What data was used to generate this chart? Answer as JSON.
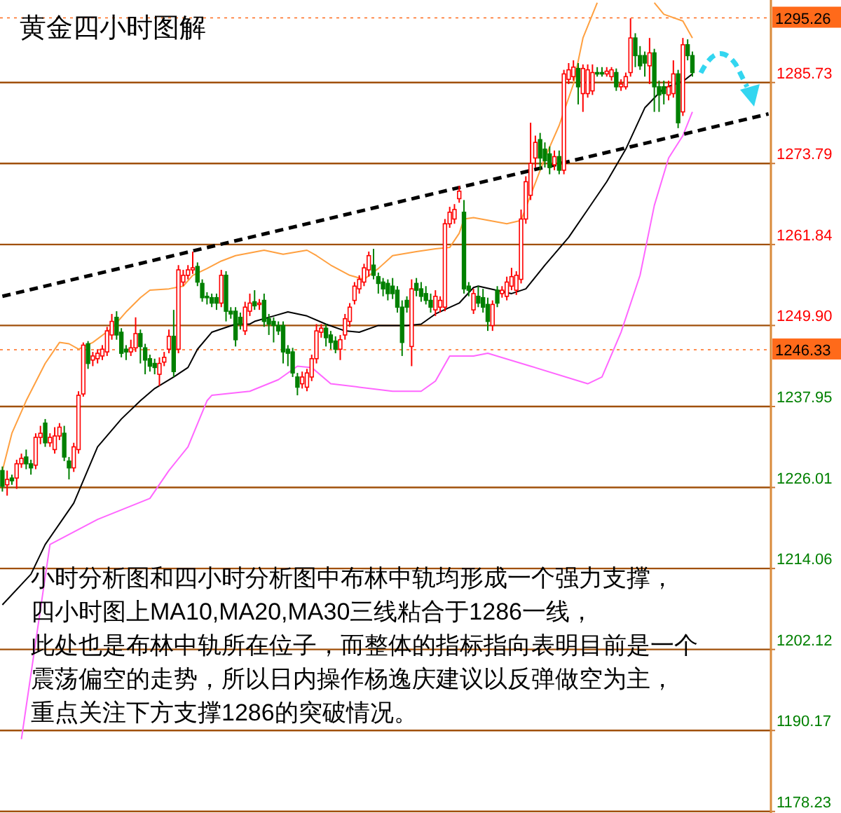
{
  "chart_data": {
    "type": "candlestick",
    "title": "黄金四小时图解",
    "annotations": [
      "小时分析图和四小时分析图中布林中轨均形成一个强力支撑，",
      "四小时图上MA10,MA20,MA30三线粘合于1286一线，",
      "此处也是布林中轨所在位子，而整体的指标指向表明目前是一个",
      "震荡偏空的走势，所以日内操作杨逸庆建议以反弹做空为主，",
      "重点关注下方支撑1286的突破情况。"
    ],
    "categories": [
      null,
      null,
      null,
      null,
      null,
      null,
      null,
      null,
      null,
      null,
      null,
      null,
      null,
      null,
      null,
      null,
      null,
      null,
      null,
      null,
      null,
      null,
      null,
      null,
      null,
      null,
      null,
      null,
      null,
      null,
      null,
      null,
      null,
      null,
      null,
      null,
      null,
      null,
      null,
      null,
      null,
      null,
      null,
      null,
      null,
      null,
      null,
      null,
      null,
      null,
      null,
      null,
      null,
      null,
      null,
      null,
      null,
      null,
      null,
      null,
      null,
      null,
      null,
      null,
      null,
      null,
      null,
      null,
      null,
      null,
      null,
      null,
      null,
      null,
      null,
      null,
      null,
      null,
      null,
      null,
      null,
      null,
      null,
      null,
      null,
      null,
      null,
      null,
      null,
      null,
      null,
      null,
      null,
      null,
      null,
      null,
      null,
      null,
      null,
      null,
      null,
      null,
      null,
      null,
      null,
      null,
      null,
      null,
      null,
      null,
      null,
      null,
      null,
      null,
      null,
      null,
      null,
      null,
      null,
      null,
      null,
      null,
      null,
      null,
      null,
      null,
      null,
      null,
      null,
      null,
      null,
      null,
      null,
      null,
      null,
      null,
      null,
      null,
      null,
      null,
      null,
      null,
      null,
      null,
      null,
      null,
      null,
      null,
      null,
      null,
      null,
      null,
      null,
      null,
      null,
      null,
      null,
      null,
      null,
      null,
      null,
      null
    ],
    "ohlc": [
      [
        1228.5,
        1229.1,
        1225.4,
        1226.2
      ],
      [
        1226.4,
        1228.5,
        1224.8,
        1227.2
      ],
      [
        1227.4,
        1227.9,
        1226.4,
        1227.0
      ],
      [
        1227.4,
        1230.1,
        1225.8,
        1229.5
      ],
      [
        1229.5,
        1231.0,
        1228.9,
        1230.3
      ],
      [
        1230.5,
        1231.6,
        1228.7,
        1229.5
      ],
      [
        1229.5,
        1230.1,
        1227.9,
        1228.9
      ],
      [
        1229.3,
        1234.0,
        1228.7,
        1233.4
      ],
      [
        1233.4,
        1235.1,
        1232.4,
        1234.0
      ],
      [
        1235.5,
        1236.1,
        1232.0,
        1232.6
      ],
      [
        1232.6,
        1234.0,
        1232.0,
        1233.4
      ],
      [
        1231.6,
        1234.9,
        1231.0,
        1233.6
      ],
      [
        1233.6,
        1235.5,
        1233.0,
        1234.9
      ],
      [
        1234.0,
        1235.1,
        1229.9,
        1230.5
      ],
      [
        1229.9,
        1230.5,
        1227.2,
        1228.9
      ],
      [
        1228.9,
        1232.6,
        1228.3,
        1232.0
      ],
      [
        1231.6,
        1240.2,
        1231.0,
        1239.6
      ],
      [
        1239.8,
        1247.4,
        1239.4,
        1247.0
      ],
      [
        1247.2,
        1247.6,
        1243.5,
        1244.3
      ],
      [
        1244.8,
        1246.0,
        1243.9,
        1245.4
      ],
      [
        1245.0,
        1246.4,
        1244.3,
        1245.8
      ],
      [
        1245.4,
        1247.0,
        1244.8,
        1246.4
      ],
      [
        1246.0,
        1249.7,
        1245.4,
        1249.1
      ],
      [
        1248.5,
        1251.6,
        1247.8,
        1250.5
      ],
      [
        1251.1,
        1252.0,
        1247.8,
        1248.5
      ],
      [
        1248.9,
        1249.5,
        1245.2,
        1245.8
      ],
      [
        1246.4,
        1247.0,
        1244.8,
        1246.0
      ],
      [
        1246.0,
        1247.8,
        1245.4,
        1246.6
      ],
      [
        1246.6,
        1251.1,
        1246.0,
        1248.7
      ],
      [
        1248.7,
        1249.3,
        1244.3,
        1246.8
      ],
      [
        1246.6,
        1247.2,
        1242.7,
        1244.8
      ],
      [
        1245.0,
        1245.6,
        1243.1,
        1243.9
      ],
      [
        1244.3,
        1245.0,
        1242.7,
        1243.7
      ],
      [
        1242.7,
        1245.2,
        1241.0,
        1244.3
      ],
      [
        1244.5,
        1246.0,
        1243.9,
        1245.2
      ],
      [
        1246.4,
        1249.3,
        1245.8,
        1248.3
      ],
      [
        1248.3,
        1252.2,
        1242.3,
        1243.1
      ],
      [
        1246.4,
        1258.8,
        1245.8,
        1258.1
      ],
      [
        1256.3,
        1258.1,
        1255.7,
        1257.3
      ],
      [
        1257.3,
        1258.8,
        1256.7,
        1258.1
      ],
      [
        1258.1,
        1260.8,
        1257.5,
        1258.4
      ],
      [
        1258.6,
        1259.2,
        1255.7,
        1256.3
      ],
      [
        1256.1,
        1256.7,
        1253.4,
        1254.0
      ],
      [
        1254.2,
        1254.8,
        1253.0,
        1254.0
      ],
      [
        1254.0,
        1254.6,
        1252.6,
        1253.2
      ],
      [
        1254.0,
        1254.6,
        1252.2,
        1253.2
      ],
      [
        1253.2,
        1258.1,
        1252.6,
        1257.3
      ],
      [
        1257.3,
        1257.9,
        1250.5,
        1252.0
      ],
      [
        1252.0,
        1252.6,
        1250.9,
        1251.6
      ],
      [
        1252.0,
        1252.6,
        1246.8,
        1247.8
      ],
      [
        1251.1,
        1251.8,
        1249.3,
        1250.1
      ],
      [
        1249.1,
        1253.4,
        1248.5,
        1252.6
      ],
      [
        1252.0,
        1254.6,
        1251.3,
        1253.2
      ],
      [
        1253.4,
        1255.1,
        1252.2,
        1252.8
      ],
      [
        1253.0,
        1253.8,
        1252.2,
        1253.2
      ],
      [
        1253.6,
        1254.6,
        1249.7,
        1250.5
      ],
      [
        1250.9,
        1251.6,
        1248.5,
        1250.1
      ],
      [
        1250.5,
        1251.1,
        1247.4,
        1249.9
      ],
      [
        1249.9,
        1250.5,
        1248.5,
        1249.1
      ],
      [
        1249.9,
        1250.5,
        1244.3,
        1246.0
      ],
      [
        1246.4,
        1247.0,
        1243.9,
        1245.8
      ],
      [
        1246.0,
        1246.6,
        1242.3,
        1242.9
      ],
      [
        1242.3,
        1242.9,
        1239.6,
        1240.8
      ],
      [
        1241.3,
        1243.1,
        1240.6,
        1242.3
      ],
      [
        1240.8,
        1243.5,
        1240.2,
        1242.9
      ],
      [
        1242.3,
        1245.6,
        1241.7,
        1245.0
      ],
      [
        1245.0,
        1250.1,
        1244.3,
        1249.1
      ],
      [
        1248.9,
        1250.1,
        1248.1,
        1249.5
      ],
      [
        1249.5,
        1250.1,
        1246.8,
        1248.1
      ],
      [
        1248.5,
        1249.1,
        1246.4,
        1247.4
      ],
      [
        1247.6,
        1248.3,
        1245.8,
        1246.4
      ],
      [
        1246.4,
        1248.5,
        1244.8,
        1247.8
      ],
      [
        1248.5,
        1251.6,
        1247.8,
        1250.9
      ],
      [
        1250.5,
        1253.2,
        1249.7,
        1252.6
      ],
      [
        1253.6,
        1256.3,
        1253.0,
        1255.7
      ],
      [
        1255.3,
        1257.3,
        1254.6,
        1256.7
      ],
      [
        1256.3,
        1259.0,
        1255.7,
        1258.4
      ],
      [
        1258.1,
        1260.8,
        1257.1,
        1260.2
      ],
      [
        1258.8,
        1261.2,
        1256.7,
        1257.3
      ],
      [
        1257.1,
        1257.7,
        1254.6,
        1256.1
      ],
      [
        1256.3,
        1256.9,
        1254.2,
        1255.3
      ],
      [
        1256.1,
        1256.7,
        1253.6,
        1254.6
      ],
      [
        1255.7,
        1256.9,
        1253.8,
        1254.6
      ],
      [
        1255.1,
        1255.7,
        1251.8,
        1252.6
      ],
      [
        1252.6,
        1253.6,
        1245.4,
        1247.4
      ],
      [
        1253.6,
        1254.2,
        1251.8,
        1252.6
      ],
      [
        1246.8,
        1256.7,
        1243.9,
        1255.3
      ],
      [
        1256.1,
        1256.9,
        1254.2,
        1255.1
      ],
      [
        1255.3,
        1256.3,
        1253.4,
        1254.2
      ],
      [
        1254.6,
        1255.7,
        1253.0,
        1253.6
      ],
      [
        1253.6,
        1254.6,
        1251.8,
        1252.6
      ],
      [
        1252.2,
        1255.1,
        1251.3,
        1254.2
      ],
      [
        1252.6,
        1254.2,
        1251.8,
        1253.6
      ],
      [
        1252.6,
        1265.6,
        1252.0,
        1264.9
      ],
      [
        1264.9,
        1267.4,
        1264.3,
        1266.6
      ],
      [
        1265.6,
        1267.8,
        1264.9,
        1267.0
      ],
      [
        1268.6,
        1270.5,
        1268.0,
        1269.7
      ],
      [
        1266.6,
        1268.4,
        1254.6,
        1255.3
      ],
      [
        1255.7,
        1256.3,
        1254.2,
        1255.1
      ],
      [
        1252.2,
        1255.3,
        1251.6,
        1254.6
      ],
      [
        1254.2,
        1255.7,
        1252.6,
        1253.2
      ],
      [
        1254.0,
        1255.3,
        1251.8,
        1252.6
      ],
      [
        1253.0,
        1254.0,
        1249.1,
        1250.5
      ],
      [
        1249.9,
        1253.6,
        1249.1,
        1253.0
      ],
      [
        1255.1,
        1255.7,
        1252.6,
        1253.2
      ],
      [
        1254.6,
        1255.7,
        1254.0,
        1255.1
      ],
      [
        1254.2,
        1257.1,
        1253.6,
        1256.3
      ],
      [
        1255.7,
        1258.4,
        1255.1,
        1257.1
      ],
      [
        1255.1,
        1257.9,
        1254.4,
        1257.3
      ],
      [
        1256.7,
        1267.0,
        1256.1,
        1265.6
      ],
      [
        1265.6,
        1271.9,
        1264.9,
        1271.1
      ],
      [
        1269.1,
        1279.8,
        1268.4,
        1273.8
      ],
      [
        1274.6,
        1277.9,
        1273.2,
        1276.9
      ],
      [
        1277.3,
        1278.3,
        1272.8,
        1274.6
      ],
      [
        1275.9,
        1276.9,
        1273.2,
        1274.2
      ],
      [
        1275.2,
        1276.3,
        1272.2,
        1273.2
      ],
      [
        1273.6,
        1275.7,
        1272.8,
        1274.8
      ],
      [
        1274.8,
        1275.7,
        1272.2,
        1272.8
      ],
      [
        1272.8,
        1287.6,
        1272.2,
        1287.0
      ],
      [
        1286.2,
        1288.6,
        1285.5,
        1287.6
      ],
      [
        1286.6,
        1289.0,
        1286.0,
        1288.0
      ],
      [
        1287.8,
        1288.6,
        1282.5,
        1285.1
      ],
      [
        1284.1,
        1288.4,
        1281.4,
        1287.8
      ],
      [
        1284.1,
        1288.4,
        1283.5,
        1287.6
      ],
      [
        1284.5,
        1288.4,
        1283.9,
        1287.2
      ],
      [
        1287.2,
        1288.0,
        1286.6,
        1287.0
      ],
      [
        1287.2,
        1288.0,
        1286.6,
        1287.0
      ],
      [
        1287.0,
        1288.0,
        1286.6,
        1287.4
      ],
      [
        1286.6,
        1288.0,
        1286.0,
        1287.6
      ],
      [
        1287.2,
        1287.8,
        1284.5,
        1285.1
      ],
      [
        1285.1,
        1286.2,
        1284.5,
        1285.5
      ],
      [
        1285.1,
        1287.2,
        1284.7,
        1286.6
      ],
      [
        1287.2,
        1295.2,
        1286.6,
        1292.3
      ],
      [
        1292.3,
        1293.0,
        1288.0,
        1289.7
      ],
      [
        1289.7,
        1291.1,
        1287.6,
        1288.2
      ],
      [
        1289.7,
        1290.3,
        1286.6,
        1288.6
      ],
      [
        1288.2,
        1292.3,
        1285.5,
        1290.1
      ],
      [
        1290.1,
        1290.7,
        1281.4,
        1285.1
      ],
      [
        1285.1,
        1286.0,
        1281.4,
        1283.9
      ],
      [
        1285.1,
        1286.0,
        1282.5,
        1284.1
      ],
      [
        1283.9,
        1286.0,
        1283.1,
        1285.1
      ],
      [
        1284.1,
        1289.0,
        1283.5,
        1287.0
      ],
      [
        1287.0,
        1287.6,
        1279.0,
        1279.8
      ],
      [
        1281.4,
        1292.3,
        1280.8,
        1291.3
      ],
      [
        1291.3,
        1292.1,
        1289.0,
        1289.7
      ],
      [
        1289.7,
        1290.3,
        1286.6,
        1287.2
      ],
      null,
      null,
      null,
      null,
      null,
      null,
      null,
      null,
      null,
      null,
      null,
      null,
      null,
      null,
      null,
      null
    ],
    "series": [
      {
        "type": "line",
        "color": "#000000",
        "values": [
          1208.7,
          null,
          null,
          null,
          null,
          null,
          1213.2,
          null,
          null,
          1217.6,
          null,
          null,
          null,
          null,
          null,
          1223.7,
          null,
          null,
          null,
          null,
          1232.0,
          null,
          null,
          null,
          null,
          1236.1,
          null,
          null,
          null,
          1238.8,
          null,
          null,
          1240.6,
          null,
          null,
          null,
          1242.3,
          null,
          null,
          1243.7,
          null,
          1246.4,
          null,
          null,
          1248.9,
          null,
          null,
          null,
          null,
          1250.1,
          null,
          null,
          1250.1,
          1250.5,
          null,
          null,
          null,
          1251.3,
          null,
          null,
          1251.9,
          null,
          null,
          null,
          1251.3,
          null,
          null,
          null,
          1250.1,
          null,
          null,
          null,
          1249.1,
          null,
          null,
          1248.9,
          null,
          null,
          null,
          1249.9,
          null,
          null,
          null,
          null,
          null,
          1249.9,
          null,
          null,
          1250.1,
          null,
          null,
          1251.6,
          null,
          null,
          null,
          null,
          1253.2,
          null,
          null,
          1255.5,
          1255.7,
          null,
          null,
          null,
          null,
          null,
          null,
          1254.6,
          null,
          null,
          1255.3,
          null,
          null,
          null,
          1258.8,
          null,
          null,
          null,
          null,
          1262.9,
          null,
          null,
          null,
          1267.0,
          null,
          null,
          null,
          1271.1,
          null,
          null,
          null,
          1275.9,
          null,
          null,
          null,
          1282.0,
          null,
          null,
          null,
          1284.9,
          null,
          null,
          null,
          1285.9,
          null,
          1287.0,
          null,
          null,
          null,
          null,
          null,
          null,
          null,
          null,
          null,
          null,
          null,
          null,
          null,
          null,
          null,
          null
        ]
      },
      {
        "type": "line",
        "color": "#ffa040",
        "values": [
          1228.5,
          null,
          1234.0,
          null,
          null,
          1238.8,
          null,
          null,
          null,
          1244.3,
          null,
          null,
          1247.4,
          null,
          1247.2,
          null,
          1246.4,
          null,
          null,
          1247.4,
          null,
          null,
          null,
          1249.5,
          null,
          null,
          1251.9,
          null,
          null,
          1254.0,
          null,
          1255.1,
          null,
          null,
          null,
          1255.3,
          null,
          null,
          1255.7,
          null,
          1257.3,
          null,
          null,
          1258.3,
          null,
          null,
          1259.4,
          null,
          null,
          1260.2,
          null,
          null,
          null,
          null,
          null,
          1261.0,
          null,
          null,
          null,
          1260.4,
          null,
          null,
          null,
          null,
          1261.0,
          null,
          1260.2,
          null,
          null,
          1258.8,
          null,
          null,
          null,
          1257.3,
          null,
          null,
          1256.7,
          null,
          null,
          1258.3,
          null,
          null,
          1260.2,
          null,
          null,
          null,
          null,
          1260.8,
          null,
          null,
          null,
          1261.2,
          null,
          null,
          1261.4,
          null,
          1263.5,
          1265.6,
          null,
          1265.8,
          null,
          null,
          null,
          null,
          null,
          null,
          1264.9,
          null,
          null,
          1265.4,
          null,
          1269.1,
          null,
          null,
          1274.6,
          null,
          null,
          1279.4,
          null,
          null,
          1285.5,
          null,
          1292.3,
          null,
          null,
          1297.5,
          null,
          null,
          null,
          null,
          null,
          null,
          null,
          null,
          null,
          null,
          null,
          null,
          null,
          null,
          null,
          null,
          null,
          null,
          null,
          null,
          null,
          null,
          null,
          null,
          null,
          null,
          null,
          null,
          null,
          null,
          null,
          null,
          null,
          null,
          null,
          null
        ]
      },
      {
        "type": "line",
        "color": "#ffa040",
        "values": [
          null,
          null,
          null,
          null,
          null,
          null,
          null,
          null,
          null,
          null,
          null,
          null,
          null,
          null,
          null,
          null,
          null,
          null,
          null,
          null,
          null,
          null,
          null,
          null,
          null,
          null,
          null,
          null,
          null,
          null,
          null,
          null,
          null,
          null,
          null,
          null,
          null,
          null,
          null,
          null,
          null,
          null,
          null,
          null,
          null,
          null,
          null,
          null,
          null,
          null,
          null,
          null,
          null,
          null,
          null,
          null,
          null,
          null,
          null,
          null,
          null,
          null,
          null,
          null,
          null,
          null,
          null,
          null,
          null,
          null,
          null,
          null,
          null,
          null,
          null,
          null,
          null,
          null,
          null,
          null,
          null,
          null,
          null,
          null,
          null,
          null,
          null,
          null,
          null,
          null,
          null,
          null,
          null,
          null,
          null,
          null,
          null,
          null,
          null,
          null,
          null,
          null,
          null,
          null,
          null,
          null,
          null,
          null,
          null,
          null,
          null,
          null,
          null,
          null,
          null,
          null,
          null,
          null,
          null,
          null,
          null,
          null,
          null,
          null,
          null,
          null,
          null,
          null,
          null,
          null,
          null,
          null,
          null,
          null,
          null,
          null,
          null,
          1297.5,
          null,
          1295.8,
          null,
          null,
          null,
          1294.8,
          null,
          1292.3,
          null,
          null,
          null,
          null,
          null,
          null,
          null,
          null,
          null,
          null,
          null,
          null,
          null,
          null,
          null,
          null
        ]
      },
      {
        "type": "line",
        "color": "#ff66ff",
        "values": [
          null,
          null,
          null,
          null,
          1188.9,
          null,
          null,
          null,
          null,
          null,
          1217.6,
          null,
          null,
          null,
          null,
          null,
          null,
          null,
          null,
          null,
          1221.3,
          null,
          null,
          null,
          null,
          null,
          null,
          null,
          null,
          null,
          null,
          1224.4,
          null,
          null,
          null,
          1228.5,
          null,
          null,
          null,
          1232.0,
          null,
          null,
          null,
          1238.8,
          1239.6,
          null,
          null,
          null,
          null,
          null,
          null,
          null,
          1240.2,
          null,
          null,
          null,
          null,
          null,
          1241.9,
          null,
          null,
          null,
          1243.9,
          null,
          null,
          1243.7,
          null,
          null,
          null,
          1241.3,
          null,
          null,
          null,
          null,
          null,
          1240.8,
          null,
          null,
          null,
          null,
          null,
          null,
          1240.2,
          null,
          null,
          null,
          null,
          null,
          1240.2,
          null,
          null,
          1241.7,
          null,
          null,
          1245.4,
          null,
          null,
          null,
          null,
          1245.4,
          null,
          null,
          1245.8,
          null,
          null,
          null,
          null,
          null,
          null,
          null,
          null,
          1243.9,
          null,
          null,
          null,
          null,
          null,
          null,
          null,
          null,
          null,
          null,
          null,
          1241.3,
          null,
          null,
          1242.3,
          null,
          null,
          null,
          1248.9,
          null,
          null,
          null,
          1257.3,
          null,
          null,
          1267.6,
          null,
          null,
          1274.6,
          null,
          null,
          1277.9,
          null,
          1281.4,
          null,
          null,
          null,
          null,
          null,
          null,
          null,
          null,
          null,
          null,
          null,
          null,
          null,
          null,
          null,
          null
        ]
      },
      {
        "type": "line",
        "color": "#000000",
        "line_style": "dashed",
        "values": [
          1254.2,
          null,
          null,
          null,
          null,
          null,
          null,
          null,
          null,
          null,
          null,
          null,
          null,
          null,
          null,
          null,
          null,
          null,
          null,
          null,
          null,
          null,
          null,
          null,
          null,
          null,
          null,
          null,
          null,
          null,
          null,
          null,
          null,
          null,
          null,
          null,
          null,
          null,
          null,
          null,
          null,
          null,
          null,
          null,
          null,
          null,
          null,
          null,
          null,
          null,
          null,
          null,
          null,
          null,
          null,
          null,
          null,
          null,
          null,
          null,
          null,
          null,
          null,
          null,
          null,
          null,
          null,
          null,
          null,
          null,
          null,
          null,
          null,
          null,
          null,
          null,
          null,
          null,
          null,
          null,
          null,
          null,
          null,
          null,
          null,
          null,
          null,
          null,
          null,
          null,
          null,
          null,
          null,
          null,
          null,
          null,
          null,
          null,
          null,
          null,
          null,
          null,
          null,
          null,
          null,
          null,
          null,
          null,
          null,
          null,
          null,
          null,
          null,
          null,
          null,
          null,
          null,
          null,
          null,
          null,
          null,
          null,
          null,
          null,
          null,
          null,
          null,
          null,
          null,
          null,
          null,
          null,
          null,
          null,
          null,
          null,
          null,
          null,
          null,
          null,
          null,
          null,
          null,
          null,
          null,
          null,
          null,
          null,
          null,
          null,
          null,
          null,
          null,
          null,
          null,
          null,
          null,
          null,
          null,
          null,
          null,
          1281.1
        ]
      }
    ],
    "ylim": [
      1178.0,
      1297.9
    ],
    "yticks": [
      1285.73,
      1273.79,
      1261.84,
      {
        "value": 1249.9,
        "label": "1249.90"
      },
      1237.95,
      1226.01,
      1214.06,
      1202.12,
      1190.17,
      1178.23
    ],
    "ref_lines": [
      {
        "axis": "y",
        "value": 1295.26,
        "label": "1295.26",
        "color": "#ff6a1a"
      },
      {
        "axis": "y",
        "value": 1246.33,
        "label": "1246.33",
        "color": "#ff6a1a"
      }
    ],
    "grid": "y"
  }
}
